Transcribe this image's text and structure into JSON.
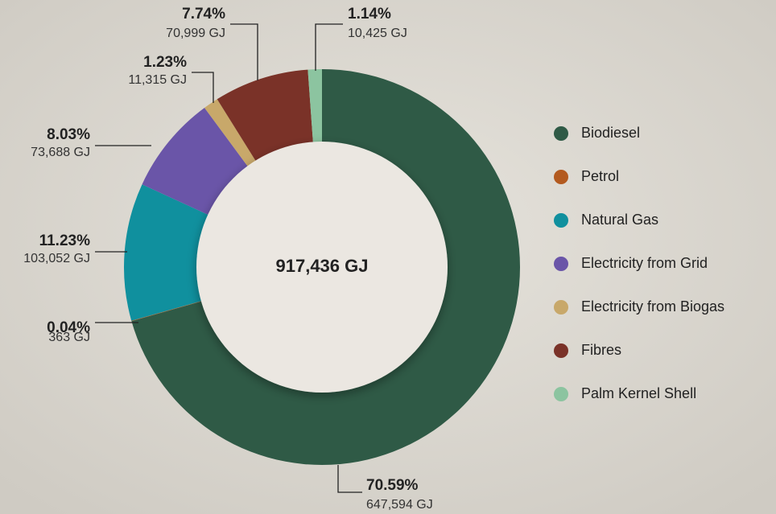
{
  "chart_data": {
    "type": "donut",
    "categories": [
      "Biodiesel",
      "Petrol",
      "Natural Gas",
      "Electricity from Grid",
      "Electricity from Biogas",
      "Fibres",
      "Palm Kernel Shell"
    ],
    "values": [
      70.59,
      0.04,
      11.23,
      8.03,
      1.23,
      7.74,
      1.14
    ],
    "value_labels": [
      "70.59%",
      "0.04%",
      "11.23%",
      "8.03%",
      "1.23%",
      "7.74%",
      "1.14%"
    ],
    "energy_labels": [
      "647,594 GJ",
      "363 GJ",
      "103,052 GJ",
      "73,688 GJ",
      "11,315 GJ",
      "70,999 GJ",
      "10,425 GJ"
    ],
    "colors": [
      "#2f5a46",
      "#b35a1f",
      "#10909e",
      "#6a55a8",
      "#c8a86a",
      "#7a3228",
      "#8cc4a0"
    ],
    "center_label": "917,436 GJ",
    "legend": "right"
  }
}
